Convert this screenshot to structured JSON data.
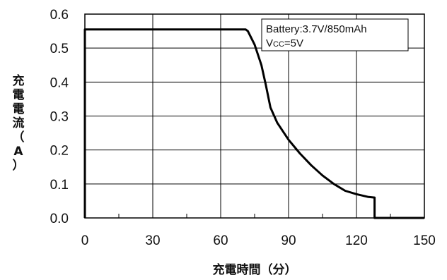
{
  "chart_data": {
    "type": "line",
    "xlabel": "充電時間（分）",
    "ylabel": "充電電流（A）",
    "xlim": [
      0,
      150
    ],
    "ylim": [
      0,
      0.6
    ],
    "x_ticks": [
      0,
      30,
      60,
      90,
      120,
      150
    ],
    "y_ticks": [
      "0.0",
      "0.1",
      "0.2",
      "0.3",
      "0.4",
      "0.5",
      "0.6"
    ],
    "grid": true,
    "annotation": {
      "battery": "Battery:3.7V/850mAh",
      "vcc_main": "V",
      "vcc_sub": "CC",
      "vcc_value": "=5V"
    },
    "series": [
      {
        "x": [
          0,
          0,
          71,
          72,
          75,
          78,
          80,
          82,
          85,
          90,
          95,
          100,
          105,
          110,
          115,
          120,
          125,
          128,
          128,
          129,
          150
        ],
        "y": [
          0,
          0.555,
          0.555,
          0.55,
          0.51,
          0.45,
          0.39,
          0.325,
          0.28,
          0.23,
          0.19,
          0.155,
          0.125,
          0.1,
          0.08,
          0.07,
          0.062,
          0.06,
          0.0,
          0.0,
          0.0
        ]
      }
    ]
  }
}
